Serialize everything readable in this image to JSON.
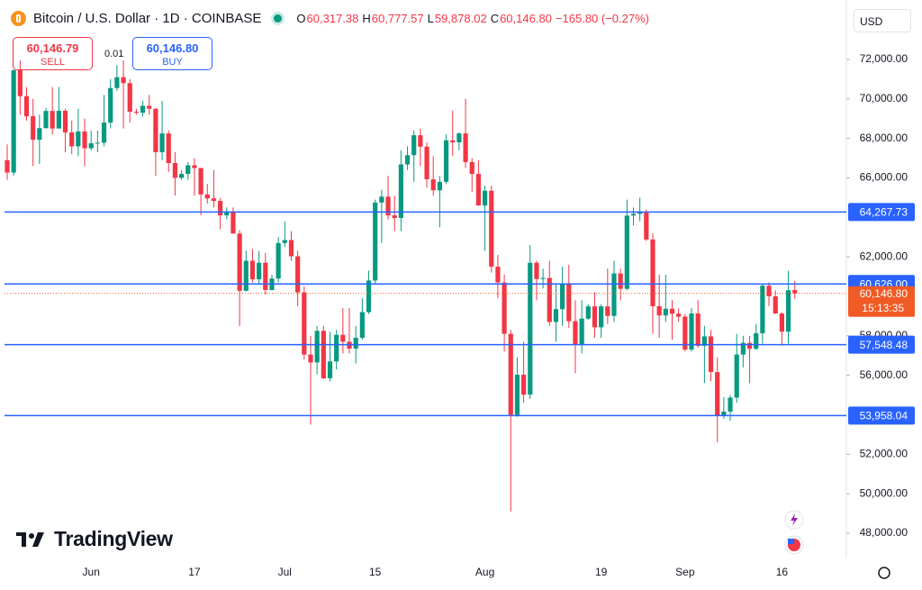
{
  "header": {
    "symbol": "Bitcoin / U.S. Dollar · 1D · COINBASE",
    "ohlc": [
      {
        "label": "O",
        "value": "60,317.38"
      },
      {
        "label": "H",
        "value": "60,777.57"
      },
      {
        "label": "L",
        "value": "59,878.02"
      },
      {
        "label": "C",
        "value": "60,146.80"
      }
    ],
    "change": "−165.80 (−0.27%)"
  },
  "trade": {
    "sell_price": "60,146.79",
    "sell_label": "SELL",
    "spread": "0.01",
    "buy_price": "60,146.80",
    "buy_label": "BUY"
  },
  "currency": "USD",
  "brand": "TradingView",
  "chart_data": {
    "type": "candlestick",
    "up_color": "#089981",
    "down_color": "#f23645",
    "x": [
      null,
      null,
      null,
      null,
      null,
      null,
      null,
      null,
      null,
      null,
      null,
      null,
      null,
      "Jun",
      null,
      null,
      null,
      null,
      null,
      null,
      null,
      null,
      null,
      null,
      null,
      null,
      null,
      null,
      null,
      "17",
      null,
      null,
      null,
      null,
      null,
      null,
      null,
      null,
      null,
      null,
      null,
      null,
      null,
      "Jul",
      null,
      null,
      null,
      null,
      null,
      null,
      null,
      null,
      null,
      null,
      null,
      null,
      null,
      "15",
      null,
      null,
      null,
      null,
      null,
      null,
      null,
      null,
      null,
      null,
      null,
      null,
      null,
      null,
      null,
      null,
      "Aug",
      null,
      null,
      null,
      null,
      null,
      null,
      null,
      null,
      null,
      null,
      null,
      null,
      null,
      null,
      null,
      null,
      null,
      "19",
      null,
      null,
      null,
      null,
      null,
      null,
      null,
      null,
      null,
      null,
      null,
      null,
      "Sep",
      null,
      null,
      null,
      null,
      null,
      null,
      null,
      null,
      null,
      null,
      null,
      null,
      null,
      null,
      "16",
      null,
      null
    ],
    "open": [
      66900,
      66270,
      71450,
      70140,
      69120,
      67930,
      68520,
      69390,
      68500,
      69400,
      68300,
      67600,
      68350,
      67500,
      67750,
      67780,
      68800,
      70550,
      71100,
      70800,
      69350,
      69300,
      69650,
      69500,
      67300,
      68250,
      66750,
      66000,
      66200,
      66640,
      66500,
      65160,
      64960,
      64830,
      64100,
      64250,
      63180,
      60280,
      61800,
      60860,
      61700,
      60320,
      60900,
      62700,
      62850,
      62030,
      60200,
      57050,
      56650,
      58250,
      55850,
      56700,
      58050,
      57700,
      57350,
      57900,
      59200,
      60800,
      64750,
      65050,
      64100,
      63970,
      66680,
      67150,
      68160,
      67580,
      65930,
      65370,
      65800,
      67900,
      67800,
      68250,
      66800,
      66200,
      64600,
      65350,
      61500,
      60700,
      58100,
      53990,
      56030,
      55020,
      61700,
      60880,
      60930,
      58700,
      59350,
      60600,
      58740,
      57560,
      58870,
      59490,
      58430,
      59490,
      59010,
      61160,
      60380,
      64090,
      64180,
      64250,
      62880,
      59500,
      59030,
      59370,
      59120,
      58970,
      57300,
      59130,
      57490,
      57970,
      56160,
      53950,
      54160,
      54870,
      57050,
      57640,
      57340,
      58130,
      60540,
      60000,
      59130,
      58210,
      60317.38
    ],
    "high": [
      67700,
      71500,
      71950,
      70600,
      70000,
      69200,
      69550,
      70600,
      70600,
      69500,
      68900,
      69500,
      69000,
      68400,
      68400,
      70200,
      71000,
      71700,
      71950,
      71000,
      69500,
      69900,
      70200,
      69550,
      69900,
      68400,
      67300,
      66400,
      66800,
      67000,
      66500,
      65700,
      66400,
      65000,
      64500,
      64500,
      63350,
      62300,
      62400,
      62300,
      62200,
      61100,
      63000,
      63800,
      63300,
      62300,
      60500,
      58000,
      58500,
      58500,
      58200,
      58300,
      59400,
      59400,
      58500,
      59900,
      61300,
      64900,
      65400,
      66100,
      65100,
      67400,
      67600,
      68400,
      68500,
      67800,
      67100,
      66100,
      68200,
      69400,
      68300,
      70000,
      67000,
      66900,
      65600,
      65600,
      62100,
      61100,
      58300,
      56900,
      57700,
      62600,
      61800,
      61400,
      61800,
      60600,
      61500,
      61600,
      59800,
      59800,
      59600,
      60200,
      59600,
      61400,
      61800,
      61400,
      64900,
      64500,
      65000,
      64400,
      63200,
      61100,
      61100,
      59800,
      59400,
      59100,
      59400,
      59800,
      58500,
      58300,
      56900,
      54900,
      55000,
      58100,
      58000,
      58000,
      58600,
      60600,
      60700,
      60300,
      59200,
      61300,
      60777.57
    ],
    "low": [
      65900,
      66100,
      69200,
      68900,
      66600,
      66700,
      68500,
      68200,
      68500,
      67300,
      67200,
      67100,
      66600,
      67400,
      67300,
      67600,
      68500,
      70400,
      68500,
      68800,
      69200,
      69100,
      69200,
      66100,
      66900,
      66300,
      65100,
      65900,
      65900,
      65100,
      64100,
      64700,
      64500,
      63400,
      63900,
      63200,
      58500,
      60250,
      60700,
      60600,
      60100,
      60300,
      60700,
      62500,
      61800,
      59500,
      56800,
      53500,
      56050,
      55800,
      55700,
      56300,
      57100,
      57100,
      56600,
      57800,
      59100,
      60600,
      62700,
      63900,
      63300,
      63300,
      66400,
      65800,
      66600,
      65500,
      65100,
      63500,
      65700,
      67100,
      67400,
      66500,
      65300,
      64600,
      62300,
      61200,
      59900,
      57200,
      49100,
      53900,
      54600,
      54800,
      59800,
      60400,
      58500,
      57700,
      58500,
      58400,
      56100,
      57100,
      58800,
      57900,
      57900,
      58600,
      58700,
      59800,
      60300,
      63600,
      63800,
      62800,
      58100,
      57900,
      58700,
      57800,
      58700,
      57200,
      57200,
      57400,
      55600,
      55700,
      52600,
      53800,
      53700,
      54600,
      56400,
      55600,
      57300,
      57600,
      59500,
      59100,
      57500,
      57600,
      59878.02
    ],
    "close": [
      66270,
      71450,
      70140,
      69120,
      67930,
      68520,
      69390,
      68500,
      69400,
      68300,
      67600,
      68350,
      67500,
      67750,
      67780,
      68800,
      70550,
      71100,
      70800,
      69350,
      69300,
      69650,
      69500,
      67300,
      68250,
      66750,
      66000,
      66200,
      66640,
      66500,
      65160,
      64960,
      64830,
      64100,
      64250,
      63180,
      60280,
      61800,
      60860,
      61700,
      60320,
      60900,
      62700,
      62850,
      62030,
      60200,
      57050,
      56650,
      58250,
      55850,
      56700,
      58050,
      57700,
      57350,
      57900,
      59200,
      60800,
      64750,
      65050,
      64100,
      63970,
      66680,
      67150,
      68160,
      67580,
      65930,
      65370,
      65800,
      67900,
      67800,
      68250,
      66800,
      66200,
      64600,
      65350,
      61500,
      60700,
      58100,
      53990,
      56030,
      55020,
      61700,
      60880,
      60930,
      58700,
      59350,
      60600,
      58740,
      57560,
      58870,
      59490,
      58430,
      59490,
      59010,
      61160,
      60380,
      64090,
      64180,
      64250,
      62880,
      59500,
      59030,
      59370,
      59120,
      58970,
      57300,
      59130,
      57490,
      57970,
      56160,
      53950,
      54160,
      54870,
      57050,
      57640,
      57340,
      58130,
      60540,
      60000,
      59130,
      58210,
      60310,
      60146.8
    ],
    "ylim": [
      46720,
      75010
    ],
    "yticks": [
      {
        "value": 48000,
        "label": "48,000.00"
      },
      {
        "value": 50000,
        "label": "50,000.00"
      },
      {
        "value": 52000,
        "label": "52,000.00"
      },
      {
        "value": 56000,
        "label": "56,000.00"
      },
      {
        "value": 58000,
        "label": "58,000.00"
      },
      {
        "value": 62000,
        "label": "62,000.00"
      },
      {
        "value": 66000,
        "label": "66,000.00"
      },
      {
        "value": 68000,
        "label": "68,000.00"
      },
      {
        "value": 70000,
        "label": "70,000.00"
      },
      {
        "value": 72000,
        "label": "72,000.00"
      }
    ],
    "grid": false,
    "hlines": [
      {
        "value": 64267.73,
        "label": "64,267.73"
      },
      {
        "value": 60626.0,
        "label": "60,626.00"
      },
      {
        "value": 57548.48,
        "label": "57,548.48"
      },
      {
        "value": 53958.04,
        "label": "53,958.04"
      }
    ],
    "hline_color": "#2962ff",
    "current_price": {
      "value": 60146.8,
      "label": "60,146.80",
      "countdown": "15:13:35",
      "color": "#f05a24"
    }
  }
}
